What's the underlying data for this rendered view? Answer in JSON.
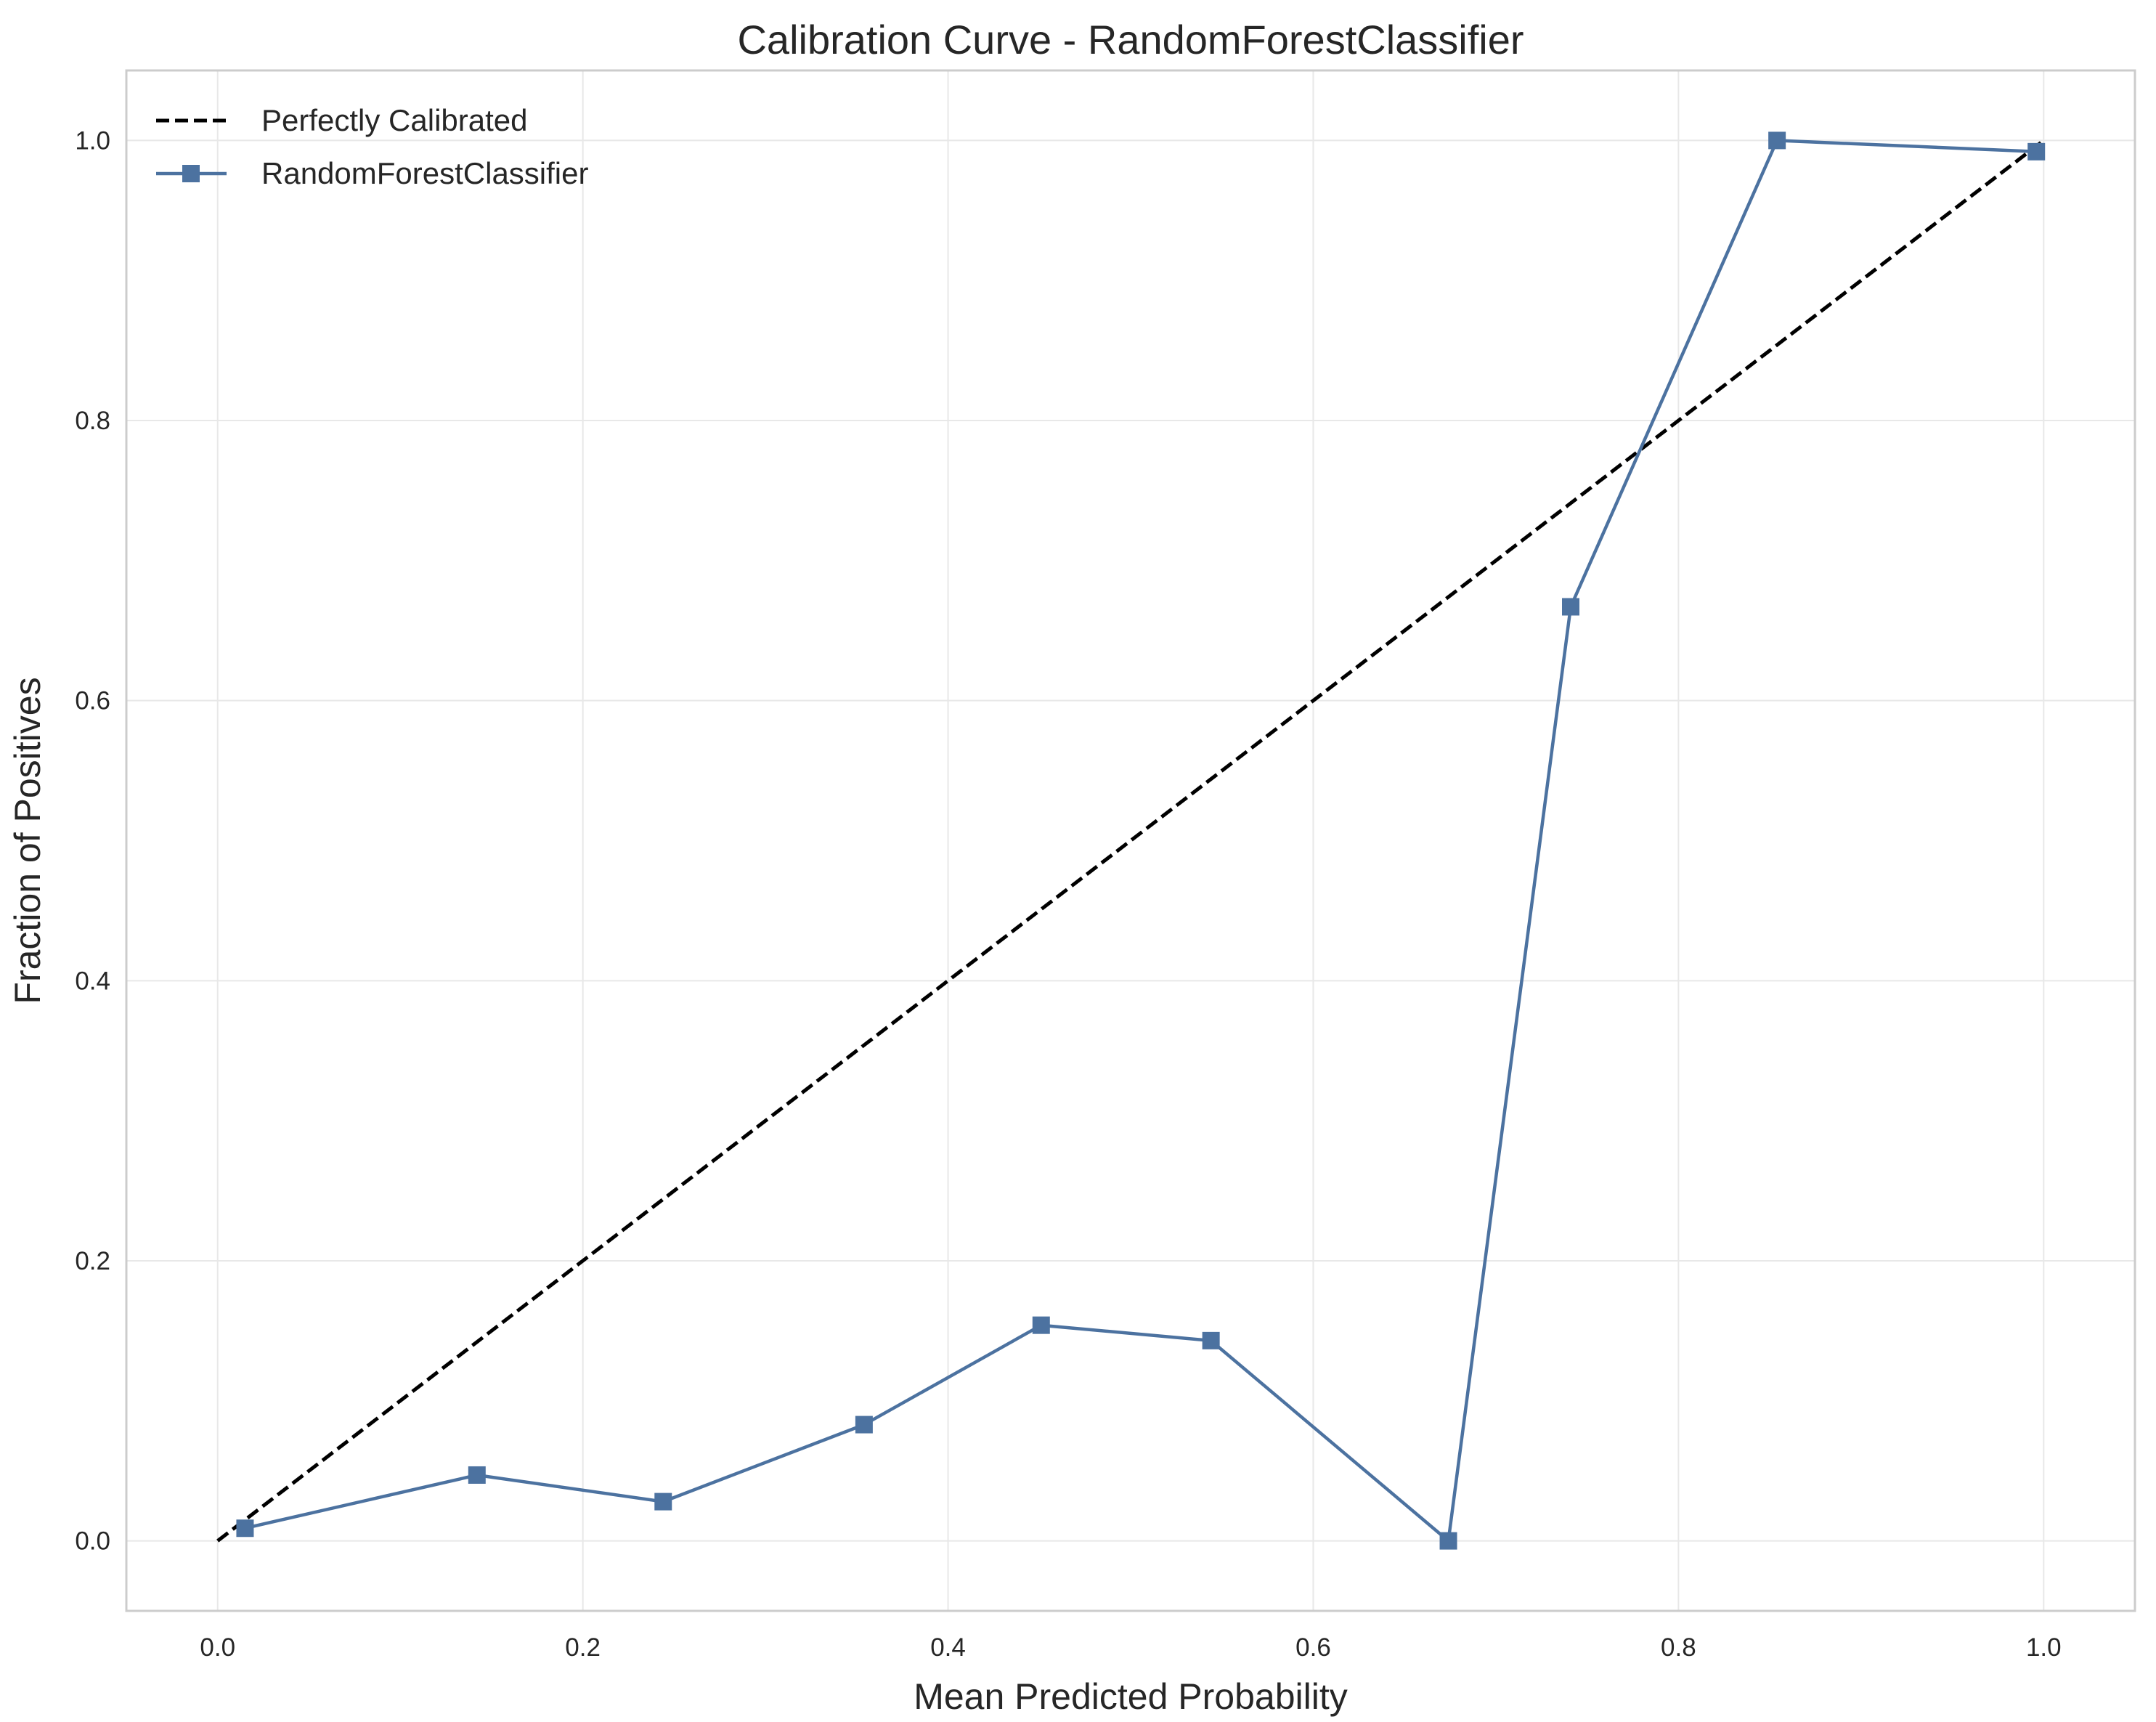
{
  "chart_data": {
    "type": "line",
    "title": "Calibration Curve - RandomForestClassifier",
    "xlabel": "Mean Predicted Probability",
    "ylabel": "Fraction of Positives",
    "xlim": [
      -0.05,
      1.05
    ],
    "ylim": [
      -0.05,
      1.05
    ],
    "xticks": [
      0.0,
      0.2,
      0.4,
      0.6,
      0.8,
      1.0
    ],
    "yticks": [
      0.0,
      0.2,
      0.4,
      0.6,
      0.8,
      1.0
    ],
    "xtick_labels": [
      "0.0",
      "0.2",
      "0.4",
      "0.6",
      "0.8",
      "1.0"
    ],
    "ytick_labels": [
      "0.0",
      "0.2",
      "0.4",
      "0.6",
      "0.8",
      "1.0"
    ],
    "grid": true,
    "legend_position": "top-left",
    "series": [
      {
        "name": "Perfectly Calibrated",
        "style": "dashed",
        "color": "#000000",
        "marker": "none",
        "x": [
          0.0,
          1.0
        ],
        "y": [
          0.0,
          1.0
        ]
      },
      {
        "name": "RandomForestClassifier",
        "style": "solid",
        "color": "#4c72a0",
        "marker": "square",
        "x": [
          0.015,
          0.142,
          0.244,
          0.354,
          0.451,
          0.544,
          0.674,
          0.741,
          0.854,
          0.996
        ],
        "y": [
          0.009,
          0.047,
          0.028,
          0.083,
          0.154,
          0.143,
          0.0,
          0.667,
          1.0,
          0.992
        ]
      }
    ]
  }
}
